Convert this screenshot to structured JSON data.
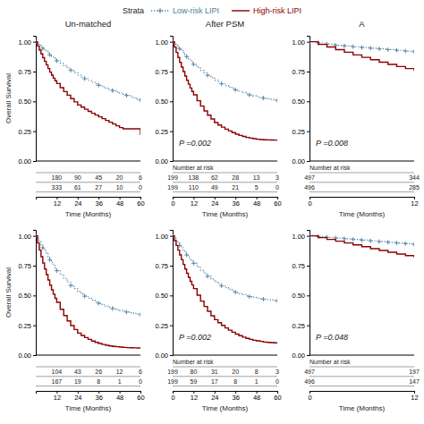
{
  "chart_data": [
    {
      "type": "step",
      "title": "Un-matched",
      "legend": "top",
      "legend_title": "Strata",
      "xlabel": "Time (Months)",
      "ylabel": "Overall Survival",
      "x": [
        0,
        1,
        2,
        3,
        4,
        5,
        6,
        7,
        8,
        9,
        10,
        11,
        12,
        14,
        16,
        18,
        20,
        22,
        24,
        26,
        28,
        30,
        32,
        34,
        36,
        38,
        40,
        42,
        44,
        46,
        48,
        50,
        52,
        54,
        56,
        58,
        60
      ],
      "series": [
        {
          "name": "Low-risk LIPI",
          "color": "#4F81A0",
          "line_style": "dotted",
          "marker": "plus",
          "values": [
            1.0,
            0.985,
            0.97,
            0.958,
            0.945,
            0.932,
            0.92,
            0.905,
            0.89,
            0.878,
            0.865,
            0.853,
            0.84,
            0.82,
            0.8,
            0.78,
            0.76,
            0.74,
            0.72,
            0.705,
            0.69,
            0.675,
            0.66,
            0.648,
            0.635,
            0.622,
            0.61,
            0.6,
            0.59,
            0.58,
            0.57,
            0.56,
            0.55,
            0.54,
            0.53,
            0.52,
            0.51
          ],
          "at_risk": [
            180,
            90,
            45,
            20,
            6
          ]
        },
        {
          "name": "High-risk LIPI",
          "color": "#8B0000",
          "line_style": "solid",
          "values": [
            1.0,
            0.965,
            0.93,
            0.898,
            0.866,
            0.835,
            0.805,
            0.775,
            0.745,
            0.72,
            0.695,
            0.673,
            0.65,
            0.615,
            0.582,
            0.552,
            0.523,
            0.496,
            0.47,
            0.452,
            0.434,
            0.416,
            0.4,
            0.385,
            0.37,
            0.355,
            0.34,
            0.325,
            0.31,
            0.295,
            0.28,
            0.27,
            0.27,
            0.27,
            0.27,
            0.27,
            0.22
          ],
          "at_risk": [
            333,
            61,
            27,
            10,
            0
          ]
        }
      ],
      "at_risk_x": [
        12,
        24,
        36,
        48,
        60
      ],
      "xlim": [
        0,
        60
      ],
      "xticks": [
        12,
        24,
        36,
        48,
        60
      ],
      "ylim": [
        0,
        1.05
      ],
      "yticks": [
        {
          "value": 0,
          "label": "0.00"
        },
        {
          "value": 0.25,
          "label": "0.25"
        },
        {
          "value": 0.5,
          "label": "0.50"
        },
        {
          "value": 0.75,
          "label": "0.75"
        },
        {
          "value": 1.0,
          "label": "1.00"
        }
      ],
      "grid": false
    },
    {
      "type": "step",
      "title": "After PSM",
      "xlabel": "Time (Months)",
      "annotations": [
        "P =0.002"
      ],
      "at_risk_label": "Number at risk",
      "x": [
        0,
        1,
        2,
        3,
        4,
        5,
        6,
        7,
        8,
        9,
        10,
        11,
        12,
        14,
        16,
        18,
        20,
        22,
        24,
        26,
        28,
        30,
        32,
        34,
        36,
        38,
        40,
        42,
        44,
        46,
        48,
        50,
        52,
        54,
        56,
        58,
        60
      ],
      "series": [
        {
          "name": "Low-risk LIPI",
          "color": "#4F81A0",
          "line_style": "dotted",
          "marker": "plus",
          "values": [
            1.0,
            0.985,
            0.97,
            0.955,
            0.94,
            0.925,
            0.91,
            0.892,
            0.875,
            0.858,
            0.842,
            0.826,
            0.81,
            0.785,
            0.76,
            0.74,
            0.718,
            0.698,
            0.678,
            0.662,
            0.647,
            0.633,
            0.62,
            0.608,
            0.596,
            0.585,
            0.574,
            0.564,
            0.554,
            0.547,
            0.54,
            0.533,
            0.527,
            0.522,
            0.517,
            0.512,
            0.508
          ],
          "at_risk": [
            199,
            138,
            62,
            28,
            13,
            3
          ]
        },
        {
          "name": "High-risk LIPI",
          "color": "#8B0000",
          "line_style": "solid",
          "values": [
            1.0,
            0.955,
            0.91,
            0.868,
            0.827,
            0.788,
            0.75,
            0.713,
            0.677,
            0.644,
            0.612,
            0.583,
            0.555,
            0.505,
            0.46,
            0.42,
            0.384,
            0.352,
            0.322,
            0.302,
            0.284,
            0.267,
            0.252,
            0.238,
            0.225,
            0.215,
            0.206,
            0.198,
            0.192,
            0.187,
            0.183,
            0.18,
            0.178,
            0.177,
            0.176,
            0.175,
            0.175
          ],
          "at_risk": [
            199,
            110,
            49,
            21,
            5,
            0
          ]
        }
      ],
      "at_risk_x": [
        0,
        12,
        24,
        36,
        48,
        60
      ],
      "xlim": [
        0,
        60
      ],
      "xticks": [
        0,
        12,
        24,
        36,
        48,
        60
      ],
      "ylim": [
        0,
        1.05
      ],
      "yticks": [
        {
          "value": 0,
          "label": "0.00"
        },
        {
          "value": 0.25,
          "label": "0.25"
        },
        {
          "value": 0.5,
          "label": "0.50"
        },
        {
          "value": 0.75,
          "label": "0.75"
        },
        {
          "value": 1.0,
          "label": "1.00"
        }
      ],
      "grid": false
    },
    {
      "type": "step",
      "title": "A",
      "xlabel": "Time (Months)",
      "annotations": [
        "P =0.008"
      ],
      "at_risk_label": "Number at risk",
      "x": [
        0,
        1,
        2,
        3,
        4,
        5,
        6,
        7,
        8,
        9,
        10,
        11,
        12
      ],
      "series": [
        {
          "name": "Low-risk LIPI",
          "color": "#4F81A0",
          "line_style": "dotted",
          "marker": "plus",
          "values": [
            1.0,
            0.99,
            0.98,
            0.97,
            0.965,
            0.958,
            0.952,
            0.946,
            0.94,
            0.934,
            0.928,
            0.922,
            0.916
          ],
          "at_risk": [
            497,
            344
          ]
        },
        {
          "name": "High-risk LIPI",
          "color": "#8B0000",
          "line_style": "solid",
          "values": [
            1.0,
            0.978,
            0.956,
            0.934,
            0.912,
            0.89,
            0.869,
            0.849,
            0.829,
            0.81,
            0.792,
            0.775,
            0.758
          ],
          "at_risk": [
            496,
            285
          ]
        }
      ],
      "at_risk_x": [
        0,
        12
      ],
      "xlim": [
        0,
        12
      ],
      "xticks": [
        0,
        12
      ],
      "ylim": [
        0,
        1.05
      ],
      "yticks": [
        {
          "value": 0,
          "label": "0.00"
        },
        {
          "value": 0.25,
          "label": "0.25"
        },
        {
          "value": 0.5,
          "label": "0.50"
        },
        {
          "value": 0.75,
          "label": "0.75"
        },
        {
          "value": 1.0,
          "label": "1.00"
        }
      ],
      "grid": false
    },
    {
      "type": "step",
      "xlabel": "Time (Months)",
      "ylabel": "Overall Survival",
      "x": [
        0,
        1,
        2,
        3,
        4,
        5,
        6,
        7,
        8,
        9,
        10,
        11,
        12,
        14,
        16,
        18,
        20,
        22,
        24,
        26,
        28,
        30,
        32,
        34,
        36,
        38,
        40,
        42,
        44,
        46,
        48,
        50,
        52,
        54,
        56,
        58,
        60
      ],
      "series": [
        {
          "name": "Low-risk LIPI",
          "color": "#4F81A0",
          "line_style": "dotted",
          "marker": "plus",
          "values": [
            1.0,
            0.975,
            0.95,
            0.925,
            0.9,
            0.875,
            0.85,
            0.825,
            0.8,
            0.775,
            0.752,
            0.73,
            0.708,
            0.675,
            0.643,
            0.613,
            0.584,
            0.558,
            0.533,
            0.513,
            0.494,
            0.477,
            0.461,
            0.447,
            0.434,
            0.422,
            0.41,
            0.4,
            0.39,
            0.382,
            0.374,
            0.367,
            0.361,
            0.355,
            0.35,
            0.345,
            0.34
          ],
          "at_risk": [
            104,
            43,
            26,
            12,
            6
          ]
        },
        {
          "name": "High-risk LIPI",
          "color": "#8B0000",
          "line_style": "solid",
          "values": [
            1.0,
            0.94,
            0.88,
            0.825,
            0.772,
            0.722,
            0.675,
            0.63,
            0.587,
            0.548,
            0.511,
            0.476,
            0.443,
            0.384,
            0.332,
            0.287,
            0.248,
            0.215,
            0.185,
            0.165,
            0.147,
            0.132,
            0.118,
            0.107,
            0.097,
            0.089,
            0.082,
            0.077,
            0.073,
            0.07,
            0.068,
            0.065,
            0.063,
            0.062,
            0.061,
            0.06,
            0.059
          ],
          "at_risk": [
            167,
            19,
            8,
            1,
            0
          ]
        }
      ],
      "at_risk_x": [
        12,
        24,
        36,
        48,
        60
      ],
      "xlim": [
        0,
        60
      ],
      "xticks": [
        12,
        24,
        36,
        48,
        60
      ],
      "ylim": [
        0,
        1.05
      ],
      "yticks": [
        {
          "value": 0,
          "label": "0.00"
        },
        {
          "value": 0.25,
          "label": "0.25"
        },
        {
          "value": 0.5,
          "label": "0.50"
        },
        {
          "value": 0.75,
          "label": "0.75"
        },
        {
          "value": 1.0,
          "label": "1.00"
        }
      ],
      "grid": false
    },
    {
      "type": "step",
      "xlabel": "Time (Months)",
      "annotations": [
        "P =0.002"
      ],
      "at_risk_label": "Number at risk",
      "x": [
        0,
        1,
        2,
        3,
        4,
        5,
        6,
        7,
        8,
        9,
        10,
        11,
        12,
        14,
        16,
        18,
        20,
        22,
        24,
        26,
        28,
        30,
        32,
        34,
        36,
        38,
        40,
        42,
        44,
        46,
        48,
        50,
        52,
        54,
        56,
        58,
        60
      ],
      "series": [
        {
          "name": "Low-risk LIPI",
          "color": "#4F81A0",
          "line_style": "dotted",
          "marker": "plus",
          "values": [
            1.0,
            0.98,
            0.96,
            0.94,
            0.92,
            0.9,
            0.88,
            0.86,
            0.84,
            0.822,
            0.804,
            0.787,
            0.77,
            0.74,
            0.712,
            0.686,
            0.661,
            0.638,
            0.616,
            0.598,
            0.581,
            0.566,
            0.552,
            0.539,
            0.527,
            0.517,
            0.507,
            0.498,
            0.49,
            0.484,
            0.478,
            0.473,
            0.469,
            0.465,
            0.462,
            0.459,
            0.456
          ],
          "at_risk": [
            199,
            80,
            31,
            20,
            8,
            3
          ]
        },
        {
          "name": "High-risk LIPI",
          "color": "#8B0000",
          "line_style": "solid",
          "values": [
            1.0,
            0.96,
            0.92,
            0.88,
            0.84,
            0.8,
            0.76,
            0.722,
            0.686,
            0.652,
            0.619,
            0.588,
            0.558,
            0.503,
            0.453,
            0.408,
            0.367,
            0.33,
            0.297,
            0.272,
            0.249,
            0.228,
            0.209,
            0.192,
            0.176,
            0.163,
            0.151,
            0.141,
            0.132,
            0.125,
            0.12,
            0.115,
            0.11,
            0.107,
            0.105,
            0.103,
            0.101
          ],
          "at_risk": [
            199,
            59,
            17,
            8,
            1,
            0
          ]
        }
      ],
      "at_risk_x": [
        0,
        12,
        24,
        36,
        48,
        60
      ],
      "xlim": [
        0,
        60
      ],
      "xticks": [
        0,
        12,
        24,
        36,
        48,
        60
      ],
      "ylim": [
        0,
        1.05
      ],
      "yticks": [
        {
          "value": 0,
          "label": "0.00"
        },
        {
          "value": 0.25,
          "label": "0.25"
        },
        {
          "value": 0.5,
          "label": "0.50"
        },
        {
          "value": 0.75,
          "label": "0.75"
        },
        {
          "value": 1.0,
          "label": "1.00"
        }
      ],
      "grid": false
    },
    {
      "type": "step",
      "xlabel": "Time (Months)",
      "annotations": [
        "P =0.048"
      ],
      "at_risk_label": "Number at risk",
      "x": [
        0,
        1,
        2,
        3,
        4,
        5,
        6,
        7,
        8,
        9,
        10,
        11,
        12
      ],
      "series": [
        {
          "name": "Low-risk LIPI",
          "color": "#4F81A0",
          "line_style": "dotted",
          "marker": "plus",
          "values": [
            1.0,
            0.994,
            0.988,
            0.982,
            0.976,
            0.97,
            0.964,
            0.958,
            0.952,
            0.946,
            0.94,
            0.934,
            0.928
          ],
          "at_risk": [
            497,
            197
          ]
        },
        {
          "name": "High-risk LIPI",
          "color": "#8B0000",
          "line_style": "solid",
          "values": [
            1.0,
            0.985,
            0.97,
            0.955,
            0.94,
            0.924,
            0.909,
            0.893,
            0.878,
            0.863,
            0.848,
            0.834,
            0.82
          ],
          "at_risk": [
            496,
            147
          ]
        }
      ],
      "at_risk_x": [
        0,
        12
      ],
      "xlim": [
        0,
        12
      ],
      "xticks": [
        0,
        12
      ],
      "ylim": [
        0,
        1.05
      ],
      "yticks": [
        {
          "value": 0,
          "label": "0.00"
        },
        {
          "value": 0.25,
          "label": "0.25"
        },
        {
          "value": 0.5,
          "label": "0.50"
        },
        {
          "value": 0.75,
          "label": "0.75"
        },
        {
          "value": 1.0,
          "label": "1.00"
        }
      ],
      "grid": false
    }
  ]
}
